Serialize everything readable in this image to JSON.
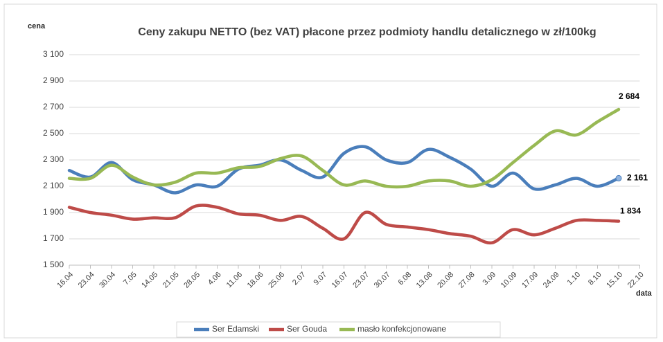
{
  "chart_data": {
    "type": "line",
    "title": "Ceny zakupu NETTO (bez VAT) płacone przez podmioty handlu detalicznego w zł/100kg",
    "y_label": "cena",
    "x_label": "data",
    "categories": [
      "16.04",
      "23.04",
      "30.04",
      "7.05",
      "14.05",
      "21.05",
      "28.05",
      "4.06",
      "11.06",
      "18.06",
      "25.06",
      "2.07",
      "9.07",
      "16.07",
      "23.07",
      "30.07",
      "6.08",
      "13.08",
      "20.08",
      "27.08",
      "3.09",
      "10.09",
      "17.09",
      "24.09",
      "1.10",
      "8.10",
      "15.10",
      "22.10"
    ],
    "series": [
      {
        "name": "Ser Edamski",
        "color": "#4a7ebb",
        "values": [
          2220,
          2170,
          2280,
          2150,
          2110,
          2050,
          2110,
          2100,
          2230,
          2260,
          2300,
          2220,
          2170,
          2350,
          2400,
          2300,
          2280,
          2380,
          2320,
          2230,
          2100,
          2200,
          2080,
          2110,
          2160,
          2100,
          2161,
          null
        ],
        "value_labels": [
          null,
          null,
          null,
          null,
          null,
          null,
          null,
          null,
          null,
          null,
          null,
          null,
          null,
          null,
          null,
          null,
          null,
          null,
          null,
          null,
          null,
          null,
          null,
          null,
          null,
          null,
          "2 161",
          null
        ]
      },
      {
        "name": "Ser Gouda",
        "color": "#be4b48",
        "values": [
          1940,
          1900,
          1880,
          1850,
          1860,
          1860,
          1950,
          1940,
          1890,
          1880,
          1840,
          1870,
          1780,
          1700,
          1900,
          1810,
          1790,
          1770,
          1740,
          1720,
          1670,
          1770,
          1730,
          1780,
          1840,
          1840,
          1834,
          null
        ],
        "value_labels": [
          null,
          null,
          null,
          null,
          null,
          null,
          null,
          null,
          null,
          null,
          null,
          null,
          null,
          null,
          null,
          null,
          null,
          null,
          null,
          null,
          null,
          null,
          null,
          null,
          null,
          null,
          "1 834",
          null
        ]
      },
      {
        "name": "masło konfekcjonowane",
        "color": "#98b954",
        "values": [
          2160,
          2160,
          2260,
          2170,
          2110,
          2130,
          2200,
          2200,
          2240,
          2250,
          2310,
          2330,
          2220,
          2110,
          2140,
          2100,
          2100,
          2140,
          2140,
          2100,
          2150,
          2280,
          2410,
          2520,
          2490,
          2590,
          2684,
          null
        ],
        "value_labels": [
          null,
          null,
          null,
          null,
          null,
          null,
          null,
          null,
          null,
          null,
          null,
          null,
          null,
          null,
          null,
          null,
          null,
          null,
          null,
          null,
          null,
          null,
          null,
          null,
          null,
          null,
          "2 684",
          null
        ]
      }
    ],
    "ylim": [
      1500,
      3100
    ],
    "yticks": [
      {
        "value": 1500,
        "label": "1 500"
      },
      {
        "value": 1700,
        "label": "1 700"
      },
      {
        "value": 1900,
        "label": "1 900"
      },
      {
        "value": 2100,
        "label": "2 100"
      },
      {
        "value": 2300,
        "label": "2 300"
      },
      {
        "value": 2500,
        "label": "2 500"
      },
      {
        "value": 2700,
        "label": "2 700"
      },
      {
        "value": 2900,
        "label": "2 900"
      },
      {
        "value": 3100,
        "label": "3 100"
      }
    ],
    "grid": true,
    "legend": "bottom"
  }
}
